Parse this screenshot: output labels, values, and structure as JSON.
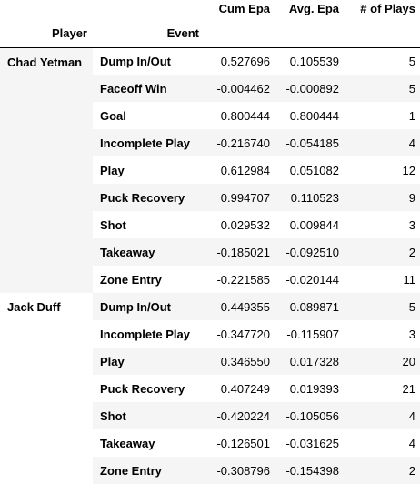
{
  "table": {
    "columns": [
      "Cum Epa",
      "Avg. Epa",
      "# of Plays"
    ],
    "index_names": [
      "Player",
      "Event"
    ],
    "groups": [
      {
        "player": "Chad Yetman",
        "rows": [
          {
            "event": "Dump In/Out",
            "cum_epa": "0.527696",
            "avg_epa": "0.105539",
            "plays": "5"
          },
          {
            "event": "Faceoff Win",
            "cum_epa": "-0.004462",
            "avg_epa": "-0.000892",
            "plays": "5"
          },
          {
            "event": "Goal",
            "cum_epa": "0.800444",
            "avg_epa": "0.800444",
            "plays": "1"
          },
          {
            "event": "Incomplete Play",
            "cum_epa": "-0.216740",
            "avg_epa": "-0.054185",
            "plays": "4"
          },
          {
            "event": "Play",
            "cum_epa": "0.612984",
            "avg_epa": "0.051082",
            "plays": "12"
          },
          {
            "event": "Puck Recovery",
            "cum_epa": "0.994707",
            "avg_epa": "0.110523",
            "plays": "9"
          },
          {
            "event": "Shot",
            "cum_epa": "0.029532",
            "avg_epa": "0.009844",
            "plays": "3"
          },
          {
            "event": "Takeaway",
            "cum_epa": "-0.185021",
            "avg_epa": "-0.092510",
            "plays": "2"
          },
          {
            "event": "Zone Entry",
            "cum_epa": "-0.221585",
            "avg_epa": "-0.020144",
            "plays": "11"
          }
        ]
      },
      {
        "player": "Jack Duff",
        "rows": [
          {
            "event": "Dump In/Out",
            "cum_epa": "-0.449355",
            "avg_epa": "-0.089871",
            "plays": "5"
          },
          {
            "event": "Incomplete Play",
            "cum_epa": "-0.347720",
            "avg_epa": "-0.115907",
            "plays": "3"
          },
          {
            "event": "Play",
            "cum_epa": "0.346550",
            "avg_epa": "0.017328",
            "plays": "20"
          },
          {
            "event": "Puck Recovery",
            "cum_epa": "0.407249",
            "avg_epa": "0.019393",
            "plays": "21"
          },
          {
            "event": "Shot",
            "cum_epa": "-0.420224",
            "avg_epa": "-0.105056",
            "plays": "4"
          },
          {
            "event": "Takeaway",
            "cum_epa": "-0.126501",
            "avg_epa": "-0.031625",
            "plays": "4"
          },
          {
            "event": "Zone Entry",
            "cum_epa": "-0.308796",
            "avg_epa": "-0.154398",
            "plays": "2"
          }
        ]
      }
    ],
    "colors": {
      "stripe": "#f5f5f5",
      "background": "#ffffff",
      "text": "#000000",
      "header_rule": "#000000"
    }
  }
}
